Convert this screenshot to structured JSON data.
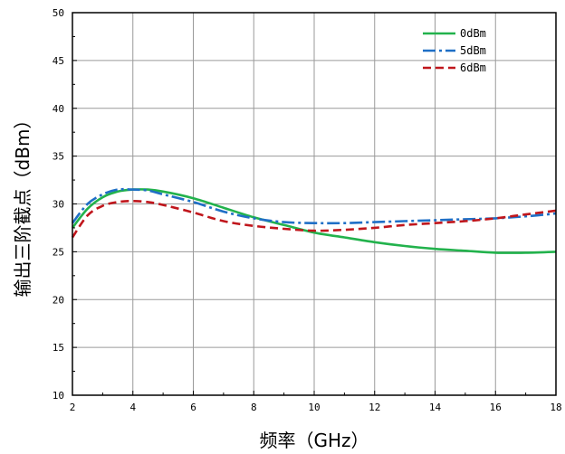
{
  "chart_data": {
    "type": "line",
    "title": "",
    "xlabel": "频率（GHz）",
    "ylabel": "输出三阶截点（dBm）",
    "xlim": [
      2,
      18
    ],
    "ylim": [
      10,
      50
    ],
    "x_ticks": [
      2,
      4,
      6,
      8,
      10,
      12,
      14,
      16,
      18
    ],
    "y_ticks": [
      10,
      15,
      20,
      25,
      30,
      35,
      40,
      45,
      50
    ],
    "grid": true,
    "legend_position": "top-right",
    "series": [
      {
        "name": "0dBm",
        "color": "#22b24c",
        "style": "solid",
        "x": [
          2,
          2.5,
          3,
          3.5,
          4,
          4.5,
          5,
          6,
          7,
          8,
          9,
          10,
          11,
          12,
          13,
          14,
          15,
          16,
          17,
          18
        ],
        "y": [
          27.5,
          29.5,
          30.7,
          31.3,
          31.5,
          31.5,
          31.3,
          30.6,
          29.6,
          28.6,
          27.8,
          27.0,
          26.5,
          26.0,
          25.6,
          25.3,
          25.1,
          24.9,
          24.9,
          25.0
        ]
      },
      {
        "name": "5dBm",
        "color": "#1f6fc6",
        "style": "dashdot",
        "x": [
          2,
          2.5,
          3,
          3.5,
          4,
          4.5,
          5,
          6,
          7,
          8,
          9,
          10,
          11,
          12,
          13,
          14,
          15,
          16,
          17,
          18
        ],
        "y": [
          28.0,
          30.0,
          31.0,
          31.5,
          31.5,
          31.4,
          31.0,
          30.2,
          29.2,
          28.5,
          28.1,
          28.0,
          28.0,
          28.1,
          28.2,
          28.3,
          28.4,
          28.5,
          28.7,
          29.0
        ]
      },
      {
        "name": "6dBm",
        "color": "#c0161c",
        "style": "dashed",
        "x": [
          2,
          2.5,
          3,
          3.5,
          4,
          4.5,
          5,
          6,
          7,
          8,
          9,
          10,
          11,
          12,
          13,
          14,
          15,
          16,
          17,
          18
        ],
        "y": [
          26.5,
          28.8,
          29.8,
          30.2,
          30.3,
          30.2,
          29.9,
          29.1,
          28.2,
          27.7,
          27.4,
          27.2,
          27.3,
          27.5,
          27.8,
          28.0,
          28.2,
          28.5,
          28.9,
          29.3
        ]
      }
    ]
  }
}
